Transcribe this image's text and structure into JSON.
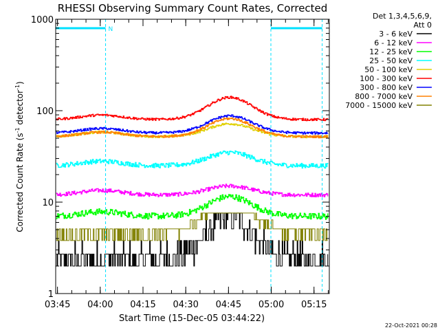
{
  "chart_data": {
    "type": "line",
    "title": "RHESSI Observing Summary Count Rates, Corrected",
    "xlabel": "Start Time (15-Dec-05 03:44:22)",
    "ylabel_main": "Corrected Count Rate (s",
    "ylabel_sup1": "-1",
    "ylabel_mid": " detector",
    "ylabel_sup2": "-1",
    "ylabel_end": ")",
    "yscale": "log",
    "ylim": [
      1,
      1000
    ],
    "xlim_minutes": [
      0,
      96
    ],
    "x_ticks": [
      "03:45",
      "04:00",
      "04:15",
      "04:30",
      "04:45",
      "05:00",
      "05:15"
    ],
    "x_tick_minutes": [
      0.63,
      15.63,
      30.63,
      45.63,
      60.63,
      75.63,
      90.63
    ],
    "y_ticks": [
      "1",
      "10",
      "100",
      "1000"
    ],
    "y_tick_values": [
      1,
      10,
      100,
      1000
    ],
    "legend_header": [
      "Det 1,3,4,5,6,9,",
      "Att 0"
    ],
    "night_intervals_minutes": [
      [
        0,
        17.5
      ],
      [
        75.5,
        93.5
      ]
    ],
    "night_marker_label": "N",
    "timestamp": "22-Oct-2021 00:28",
    "series": [
      {
        "name": "3 - 6 keV",
        "color": "#000000",
        "base": 2.4,
        "peak": 7.0,
        "noise": 0.35,
        "step": true
      },
      {
        "name": "6 - 12 keV",
        "color": "#ff00ff",
        "base": 12.0,
        "peak": 15.0,
        "noise": 0.05
      },
      {
        "name": "12 - 25 keV",
        "color": "#00ff00",
        "base": 7.0,
        "peak": 11.5,
        "noise": 0.08
      },
      {
        "name": "25 - 50 keV",
        "color": "#00ffff",
        "base": 25.0,
        "peak": 35.0,
        "noise": 0.06
      },
      {
        "name": "50 - 100 keV",
        "color": "#e0d000",
        "base": 52.0,
        "peak": 72.0,
        "noise": 0.03
      },
      {
        "name": "100 - 300 keV",
        "color": "#ff0000",
        "base": 80.0,
        "peak": 140.0,
        "noise": 0.03
      },
      {
        "name": "300 - 800 keV",
        "color": "#0000ff",
        "base": 57.0,
        "peak": 88.0,
        "noise": 0.03
      },
      {
        "name": "800 - 7000 keV",
        "color": "#ff8000",
        "base": 52.0,
        "peak": 82.0,
        "noise": 0.03
      },
      {
        "name": "7000 - 15000 keV",
        "color": "#808000",
        "base": 4.5,
        "peak": 10.5,
        "noise": 0.12,
        "step": true
      }
    ]
  }
}
